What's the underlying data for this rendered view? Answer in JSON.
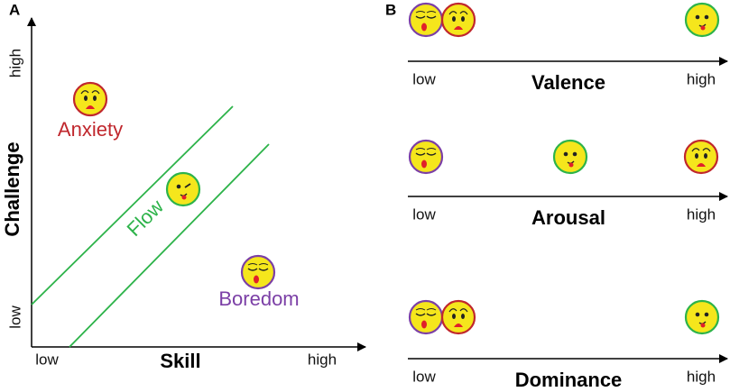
{
  "panel_a": {
    "label": "A",
    "y_axis": {
      "title": "Challenge",
      "low": "low",
      "high": "high"
    },
    "x_axis": {
      "title": "Skill",
      "low": "low",
      "high": "high"
    },
    "regions": [
      {
        "label": "Anxiety"
      },
      {
        "label": "Flow"
      },
      {
        "label": "Boredom"
      }
    ]
  },
  "panel_b": {
    "label": "B",
    "axes": [
      {
        "title": "Valence",
        "low": "low",
        "high": "high"
      },
      {
        "title": "Arousal",
        "low": "low",
        "high": "high"
      },
      {
        "title": "Dominance",
        "low": "low",
        "high": "high"
      }
    ]
  }
}
